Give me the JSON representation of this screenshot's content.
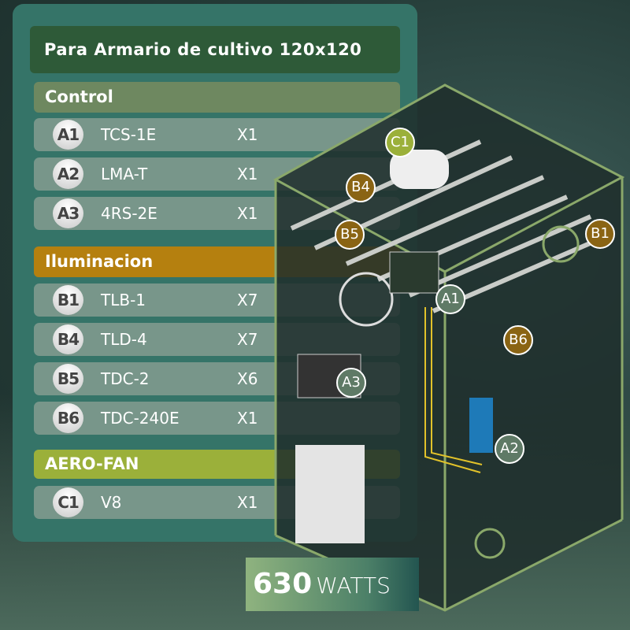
{
  "title": "Para Armario de cultivo 120x120",
  "sections": [
    {
      "label": "Control",
      "color": "#6e8860",
      "items": [
        {
          "code": "A1",
          "name": "TCS-1E",
          "qty": "X1"
        },
        {
          "code": "A2",
          "name": "LMA-T",
          "qty": "X1"
        },
        {
          "code": "A3",
          "name": "4RS-2E",
          "qty": "X1"
        }
      ]
    },
    {
      "label": "Iluminacion",
      "color": "#b5800f",
      "items": [
        {
          "code": "B1",
          "name": "TLB-1",
          "qty": "X7"
        },
        {
          "code": "B4",
          "name": "TLD-4",
          "qty": "X7"
        },
        {
          "code": "B5",
          "name": "TDC-2",
          "qty": "X6"
        },
        {
          "code": "B6",
          "name": "TDC-240E",
          "qty": "X1"
        }
      ]
    },
    {
      "label": "AERO-FAN",
      "color": "#9bb03a",
      "items": [
        {
          "code": "C1",
          "name": "V8",
          "qty": "X1"
        }
      ]
    }
  ],
  "diagram_labels": [
    "C1",
    "B4",
    "B5",
    "B1",
    "A1",
    "B6",
    "A3",
    "A2"
  ],
  "power": {
    "value": "630",
    "unit": "WATTS"
  }
}
